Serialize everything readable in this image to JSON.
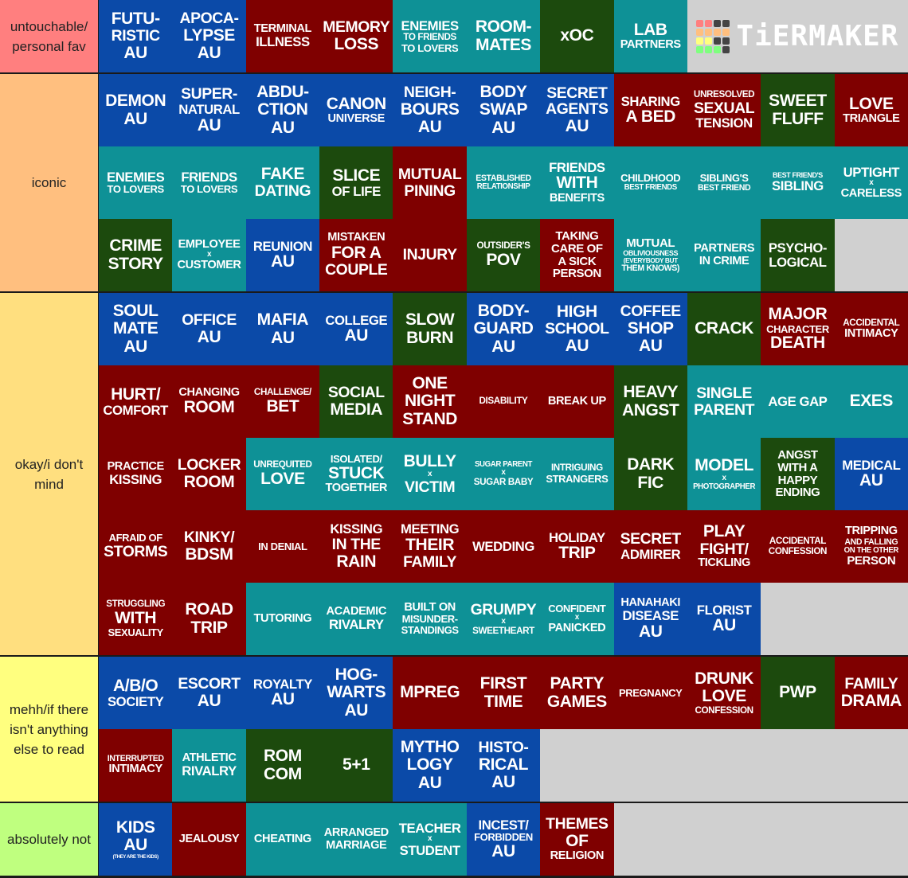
{
  "colors": {
    "blue": "#0b4aa8",
    "teal": "#0e9196",
    "red": "#7f0000",
    "green": "#1c4a0d",
    "empty": "#d0d0d0"
  },
  "logo": {
    "text": "TiERMAKER",
    "cells": [
      "#ff7f7f",
      "#ff7f7f",
      "#444",
      "#444",
      "#ffbf7f",
      "#ffbf7f",
      "#ffbf7f",
      "#ffbf7f",
      "#ffff7f",
      "#ffff7f",
      "#444",
      "#444",
      "#7fff7f",
      "#7fff7f",
      "#7fff7f",
      "#444"
    ]
  },
  "tiers": [
    {
      "label": "untouchable/ personal fav",
      "color": "#ff7f7f",
      "show_logo": true,
      "items": [
        {
          "lines": [
            "FUTU-",
            "RISTIC",
            "AU"
          ],
          "c": "blue"
        },
        {
          "lines": [
            "APOCA-",
            "LYPSE",
            "AU"
          ],
          "c": "blue"
        },
        {
          "lines": [
            "TERMINAL",
            "ILLNESS"
          ],
          "c": "red"
        },
        {
          "lines": [
            "MEMORY",
            "LOSS"
          ],
          "c": "red"
        },
        {
          "lines": [
            "ENEMIES",
            "TO FRIENDS",
            "TO LOVERS"
          ],
          "c": "teal"
        },
        {
          "lines": [
            "ROOM-",
            "MATES"
          ],
          "c": "teal"
        },
        {
          "lines": [
            "xOC"
          ],
          "c": "green"
        },
        {
          "lines": [
            "LAB",
            "PARTNERS"
          ],
          "c": "teal"
        }
      ]
    },
    {
      "label": "iconic",
      "color": "#ffbf7f",
      "items": [
        {
          "lines": [
            "DEMON",
            "AU"
          ],
          "c": "blue"
        },
        {
          "lines": [
            "SUPER-",
            "NATURAL",
            "AU"
          ],
          "c": "blue"
        },
        {
          "lines": [
            "ABDU-",
            "CTION",
            "AU"
          ],
          "c": "blue"
        },
        {
          "lines": [
            "CANON",
            "UNIVERSE"
          ],
          "c": "blue"
        },
        {
          "lines": [
            "NEIGH-",
            "BOURS",
            "AU"
          ],
          "c": "blue"
        },
        {
          "lines": [
            "BODY",
            "SWAP",
            "AU"
          ],
          "c": "blue"
        },
        {
          "lines": [
            "SECRET",
            "AGENTS",
            "AU"
          ],
          "c": "blue"
        },
        {
          "lines": [
            "SHARING",
            "A BED"
          ],
          "c": "red"
        },
        {
          "lines": [
            "UNRESOLVED",
            "SEXUAL",
            "TENSION"
          ],
          "c": "red"
        },
        {
          "lines": [
            "SWEET",
            "FLUFF"
          ],
          "c": "green"
        },
        {
          "lines": [
            "LOVE",
            "TRIANGLE"
          ],
          "c": "red"
        },
        {
          "lines": [
            "ENEMIES",
            "TO LOVERS"
          ],
          "c": "teal"
        },
        {
          "lines": [
            "FRIENDS",
            "TO LOVERS"
          ],
          "c": "teal"
        },
        {
          "lines": [
            "FAKE",
            "DATING"
          ],
          "c": "teal"
        },
        {
          "lines": [
            "SLICE",
            "OF LIFE"
          ],
          "c": "green"
        },
        {
          "lines": [
            "MUTUAL",
            "PINING"
          ],
          "c": "red"
        },
        {
          "lines": [
            "ESTABLISHED",
            "RELATIONSHIP"
          ],
          "c": "teal"
        },
        {
          "lines": [
            "FRIENDS",
            "WITH",
            "BENEFITS"
          ],
          "c": "teal"
        },
        {
          "lines": [
            "CHILDHOOD",
            "BEST FRIENDS"
          ],
          "c": "teal"
        },
        {
          "lines": [
            "SIBLING'S",
            "BEST FRIEND"
          ],
          "c": "teal"
        },
        {
          "lines": [
            "BEST FRIEND'S",
            "SIBLING"
          ],
          "c": "teal"
        },
        {
          "lines": [
            "UPTIGHT",
            "x",
            "CARELESS"
          ],
          "c": "teal"
        },
        {
          "lines": [
            "CRIME",
            "STORY"
          ],
          "c": "green"
        },
        {
          "lines": [
            "EMPLOYEE",
            "x",
            "CUSTOMER"
          ],
          "c": "teal"
        },
        {
          "lines": [
            "REUNION",
            "AU"
          ],
          "c": "blue"
        },
        {
          "lines": [
            "MISTAKEN",
            "FOR A",
            "COUPLE"
          ],
          "c": "red"
        },
        {
          "lines": [
            "INJURY"
          ],
          "c": "red"
        },
        {
          "lines": [
            "OUTSIDER'S",
            "POV"
          ],
          "c": "green"
        },
        {
          "lines": [
            "TAKING",
            "CARE OF",
            "A SICK",
            "PERSON"
          ],
          "c": "red"
        },
        {
          "lines": [
            "MUTUAL",
            "OBLIVIOUSNESS",
            "(EVERYBODY BUT",
            "THEM KNOWS)"
          ],
          "c": "teal"
        },
        {
          "lines": [
            "PARTNERS",
            "IN CRIME"
          ],
          "c": "teal"
        },
        {
          "lines": [
            "PSYCHO-",
            "LOGICAL"
          ],
          "c": "green"
        }
      ]
    },
    {
      "label": "okay/i don't mind",
      "color": "#ffdf7f",
      "items": [
        {
          "lines": [
            "SOUL",
            "MATE",
            "AU"
          ],
          "c": "blue"
        },
        {
          "lines": [
            "OFFICE",
            "AU"
          ],
          "c": "blue"
        },
        {
          "lines": [
            "MAFIA",
            "AU"
          ],
          "c": "blue"
        },
        {
          "lines": [
            "COLLEGE",
            "AU"
          ],
          "c": "blue"
        },
        {
          "lines": [
            "SLOW",
            "BURN"
          ],
          "c": "green"
        },
        {
          "lines": [
            "BODY-",
            "GUARD",
            "AU"
          ],
          "c": "blue"
        },
        {
          "lines": [
            "HIGH",
            "SCHOOL",
            "AU"
          ],
          "c": "blue"
        },
        {
          "lines": [
            "COFFEE",
            "SHOP",
            "AU"
          ],
          "c": "blue"
        },
        {
          "lines": [
            "CRACK"
          ],
          "c": "green"
        },
        {
          "lines": [
            "MAJOR",
            "CHARACTER",
            "DEATH"
          ],
          "c": "red"
        },
        {
          "lines": [
            "ACCIDENTAL",
            "INTIMACY"
          ],
          "c": "red"
        },
        {
          "lines": [
            "HURT/",
            "COMFORT"
          ],
          "c": "red"
        },
        {
          "lines": [
            "CHANGING",
            "ROOM"
          ],
          "c": "red"
        },
        {
          "lines": [
            "CHALLENGE/",
            "BET"
          ],
          "c": "red"
        },
        {
          "lines": [
            "SOCIAL",
            "MEDIA"
          ],
          "c": "green"
        },
        {
          "lines": [
            "ONE",
            "NIGHT",
            "STAND"
          ],
          "c": "red"
        },
        {
          "lines": [
            "DISABILITY"
          ],
          "c": "red"
        },
        {
          "lines": [
            "BREAK UP"
          ],
          "c": "red"
        },
        {
          "lines": [
            "HEAVY",
            "ANGST"
          ],
          "c": "green"
        },
        {
          "lines": [
            "SINGLE",
            "PARENT"
          ],
          "c": "teal"
        },
        {
          "lines": [
            "AGE GAP"
          ],
          "c": "teal"
        },
        {
          "lines": [
            "EXES"
          ],
          "c": "teal"
        },
        {
          "lines": [
            "PRACTICE",
            "KISSING"
          ],
          "c": "red"
        },
        {
          "lines": [
            "LOCKER",
            "ROOM"
          ],
          "c": "red"
        },
        {
          "lines": [
            "UNREQUITED",
            "LOVE"
          ],
          "c": "teal"
        },
        {
          "lines": [
            "ISOLATED/",
            "STUCK",
            "TOGETHER"
          ],
          "c": "teal"
        },
        {
          "lines": [
            "BULLY",
            "x",
            "VICTIM"
          ],
          "c": "teal"
        },
        {
          "lines": [
            "SUGAR PARENT",
            "x",
            "SUGAR BABY"
          ],
          "c": "teal"
        },
        {
          "lines": [
            "INTRIGUING",
            "STRANGERS"
          ],
          "c": "teal"
        },
        {
          "lines": [
            "DARK",
            "FIC"
          ],
          "c": "green"
        },
        {
          "lines": [
            "MODEL",
            "x",
            "PHOTOGRAPHER"
          ],
          "c": "teal"
        },
        {
          "lines": [
            "ANGST",
            "WITH A",
            "HAPPY",
            "ENDING"
          ],
          "c": "green"
        },
        {
          "lines": [
            "MEDICAL",
            "AU"
          ],
          "c": "blue"
        },
        {
          "lines": [
            "AFRAID OF",
            "STORMS"
          ],
          "c": "red"
        },
        {
          "lines": [
            "KINKY/",
            "BDSM"
          ],
          "c": "red"
        },
        {
          "lines": [
            "IN DENIAL"
          ],
          "c": "red"
        },
        {
          "lines": [
            "KISSING",
            "IN THE",
            "RAIN"
          ],
          "c": "red"
        },
        {
          "lines": [
            "MEETING",
            "THEIR",
            "FAMILY"
          ],
          "c": "red"
        },
        {
          "lines": [
            "WEDDING"
          ],
          "c": "red"
        },
        {
          "lines": [
            "HOLIDAY",
            "TRIP"
          ],
          "c": "red"
        },
        {
          "lines": [
            "SECRET",
            "ADMIRER"
          ],
          "c": "red"
        },
        {
          "lines": [
            "PLAY",
            "FIGHT/",
            "TICKLING"
          ],
          "c": "red"
        },
        {
          "lines": [
            "ACCIDENTAL",
            "CONFESSION"
          ],
          "c": "red"
        },
        {
          "lines": [
            "TRIPPING",
            "AND FALLING",
            "ON THE OTHER",
            "PERSON"
          ],
          "c": "red"
        },
        {
          "lines": [
            "STRUGGLING",
            "WITH",
            "SEXUALITY"
          ],
          "c": "red"
        },
        {
          "lines": [
            "ROAD",
            "TRIP"
          ],
          "c": "red"
        },
        {
          "lines": [
            "TUTORING"
          ],
          "c": "teal"
        },
        {
          "lines": [
            "ACADEMIC",
            "RIVALRY"
          ],
          "c": "teal"
        },
        {
          "lines": [
            "BUILT ON",
            "MISUNDER-",
            "STANDINGS"
          ],
          "c": "teal"
        },
        {
          "lines": [
            "GRUMPY",
            "x",
            "SWEETHEART"
          ],
          "c": "teal"
        },
        {
          "lines": [
            "CONFIDENT",
            "x",
            "PANICKED"
          ],
          "c": "teal"
        },
        {
          "lines": [
            "HANAHAKI",
            "DISEASE",
            "AU"
          ],
          "c": "blue"
        },
        {
          "lines": [
            "FLORIST",
            "AU"
          ],
          "c": "blue"
        }
      ]
    },
    {
      "label": "mehh/if there isn't anything else to read",
      "color": "#ffff7f",
      "items": [
        {
          "lines": [
            "A/B/O",
            "SOCIETY"
          ],
          "c": "blue"
        },
        {
          "lines": [
            "ESCORT",
            "AU"
          ],
          "c": "blue"
        },
        {
          "lines": [
            "ROYALTY",
            "AU"
          ],
          "c": "blue"
        },
        {
          "lines": [
            "HOG-",
            "WARTS",
            "AU"
          ],
          "c": "blue"
        },
        {
          "lines": [
            "MPREG"
          ],
          "c": "red"
        },
        {
          "lines": [
            "FIRST",
            "TIME"
          ],
          "c": "red"
        },
        {
          "lines": [
            "PARTY",
            "GAMES"
          ],
          "c": "red"
        },
        {
          "lines": [
            "PREGNANCY"
          ],
          "c": "red"
        },
        {
          "lines": [
            "DRUNK",
            "LOVE",
            "CONFESSION"
          ],
          "c": "red"
        },
        {
          "lines": [
            "PWP"
          ],
          "c": "green"
        },
        {
          "lines": [
            "FAMILY",
            "DRAMA"
          ],
          "c": "red"
        },
        {
          "lines": [
            "INTERRUPTED",
            "INTIMACY"
          ],
          "c": "red"
        },
        {
          "lines": [
            "ATHLETIC",
            "RIVALRY"
          ],
          "c": "teal"
        },
        {
          "lines": [
            "ROM",
            "COM"
          ],
          "c": "green"
        },
        {
          "lines": [
            "5+1"
          ],
          "c": "green"
        },
        {
          "lines": [
            "MYTHO",
            "LOGY",
            "AU"
          ],
          "c": "blue"
        },
        {
          "lines": [
            "HISTO-",
            "RICAL",
            "AU"
          ],
          "c": "blue"
        }
      ]
    },
    {
      "label": "absolutely not",
      "color": "#bfff7f",
      "items": [
        {
          "lines": [
            "KIDS",
            "AU",
            "(THEY ARE THE KIDS)"
          ],
          "c": "blue"
        },
        {
          "lines": [
            "JEALOUSY"
          ],
          "c": "red"
        },
        {
          "lines": [
            "CHEATING"
          ],
          "c": "teal"
        },
        {
          "lines": [
            "ARRANGED",
            "MARRIAGE"
          ],
          "c": "teal"
        },
        {
          "lines": [
            "TEACHER",
            "x",
            "STUDENT"
          ],
          "c": "teal"
        },
        {
          "lines": [
            "INCEST/",
            "FORBIDDEN",
            "AU"
          ],
          "c": "blue"
        },
        {
          "lines": [
            "THEMES",
            "OF",
            "RELIGION"
          ],
          "c": "red"
        }
      ]
    }
  ]
}
